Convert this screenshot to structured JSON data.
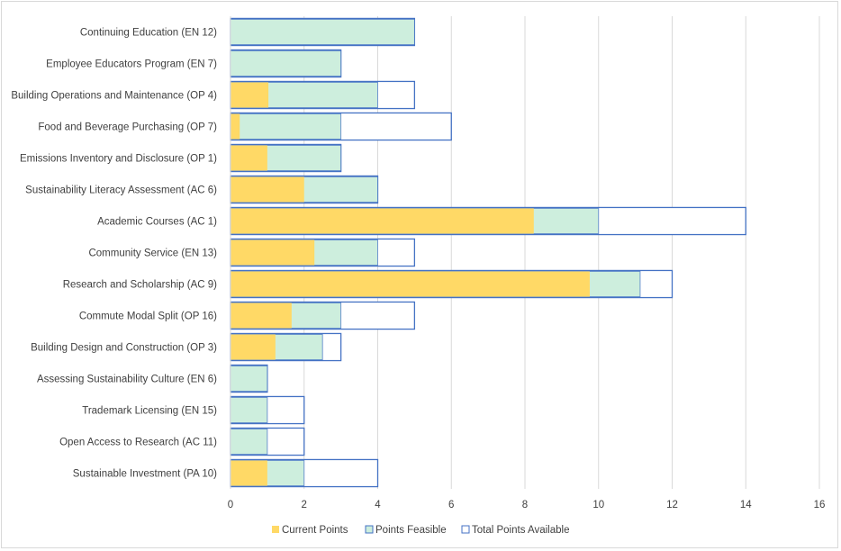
{
  "chart_data": {
    "type": "bar",
    "orientation": "horizontal",
    "overlap": true,
    "categories": [
      "Continuing Education (EN 12)",
      "Employee Educators Program (EN 7)",
      "Building Operations and Maintenance (OP 4)",
      "Food and Beverage Purchasing (OP 7)",
      "Emissions Inventory and Disclosure (OP 1)",
      "Sustainability Literacy Assessment (AC 6)",
      "Academic Courses (AC 1)",
      "Community Service (EN 13)",
      "Research and Scholarship (AC 9)",
      "Commute Modal Split (OP 16)",
      "Building Design and Construction (OP 3)",
      "Assessing Sustainability Culture (EN 6)",
      "Trademark Licensing (EN 15)",
      "Open Access to Research (AC 11)",
      "Sustainable Investment (PA 10)"
    ],
    "series": [
      {
        "name": "Total Points Available",
        "color": "#ffffff",
        "border": "#4472c4",
        "values": [
          5,
          3,
          5,
          6,
          3,
          4,
          14,
          5,
          12,
          5,
          3,
          1,
          2,
          2,
          4
        ]
      },
      {
        "name": "Points Feasible",
        "color": "#cdeedd",
        "border": "#4472c4",
        "values": [
          5,
          3,
          4,
          3,
          3,
          4,
          10,
          4,
          11.13,
          3,
          2.5,
          1,
          1,
          1,
          2
        ]
      },
      {
        "name": "Current Points",
        "color": "#ffd966",
        "values": [
          0,
          0,
          1.03,
          0.25,
          1,
          2,
          8.24,
          2.28,
          9.76,
          1.66,
          1.22,
          0,
          0,
          0,
          1
        ]
      }
    ],
    "xlim": [
      0,
      16
    ],
    "xticks": [
      "0",
      "2",
      "4",
      "6",
      "8",
      "10",
      "12",
      "14",
      "16"
    ],
    "grid": true,
    "legend_position": "bottom",
    "legend": [
      "Current Points",
      "Points Feasible",
      "Total Points Available"
    ]
  }
}
